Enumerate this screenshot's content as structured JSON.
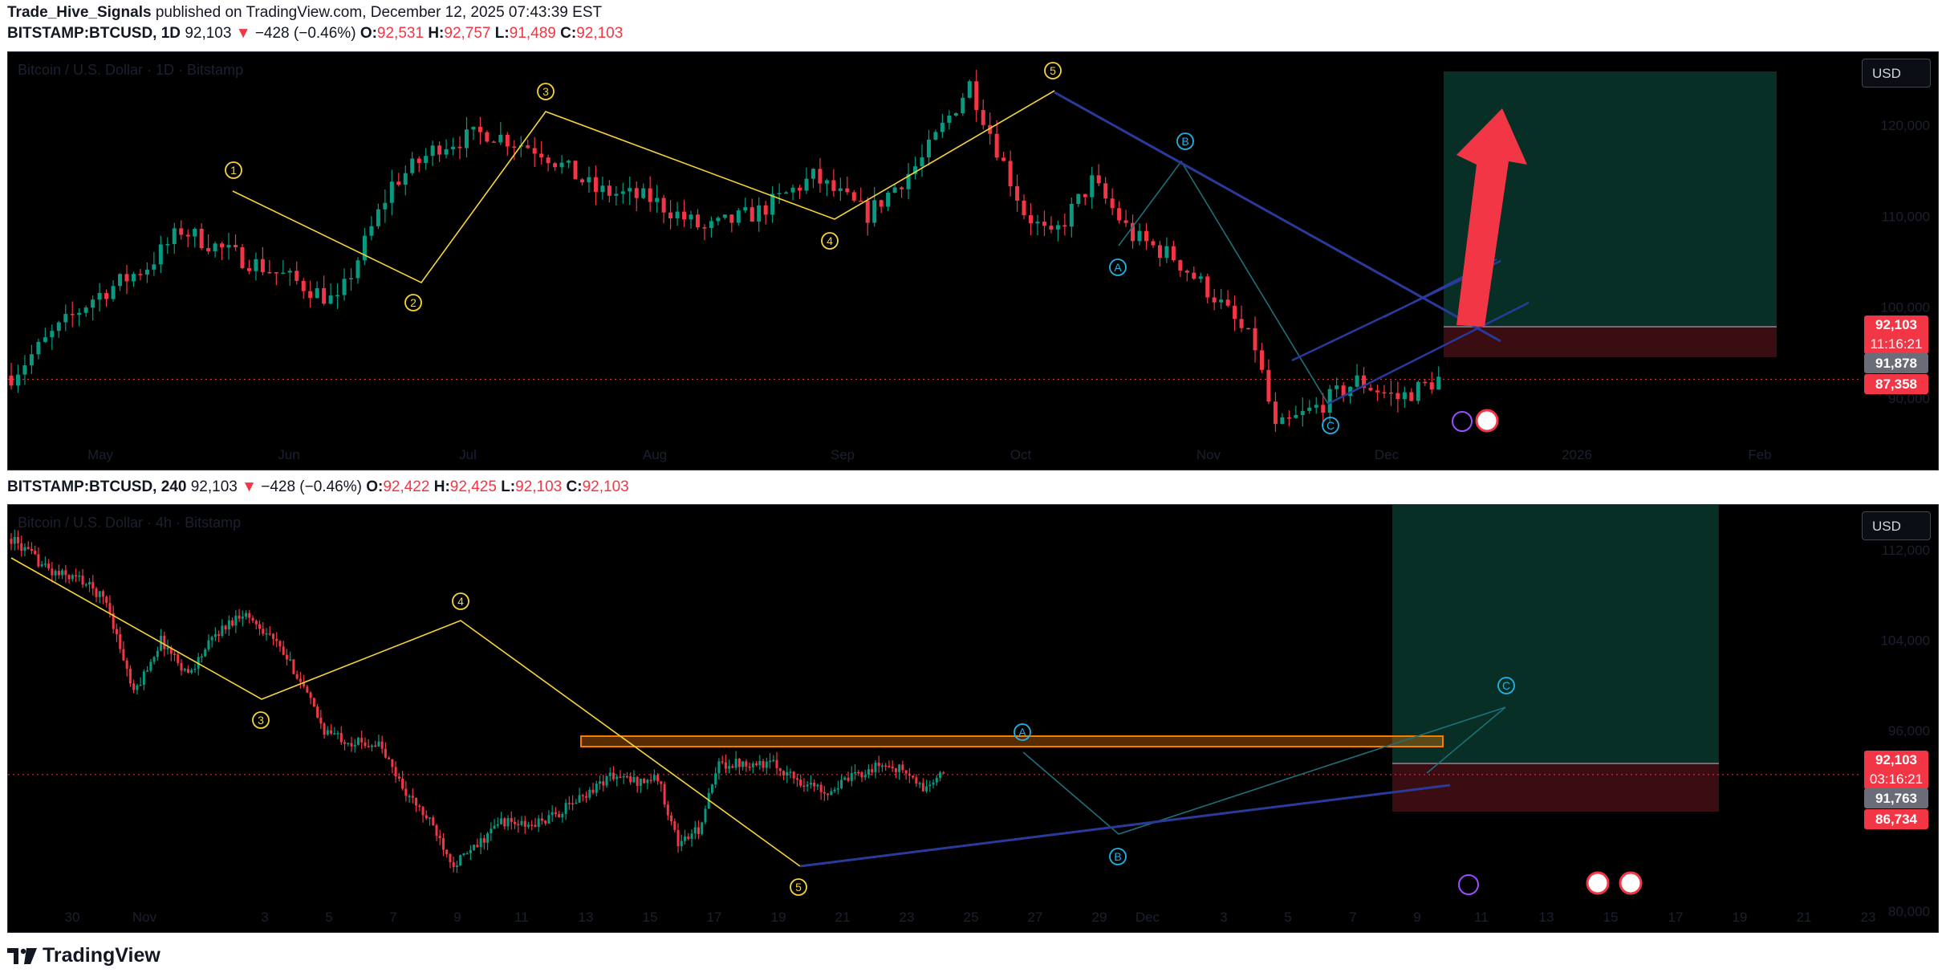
{
  "publish_line": {
    "author": "Trade_Hive_Signals",
    "text": "published on TradingView.com, December 12, 2025 07:43:39 EST"
  },
  "top_pane": {
    "symbol": "BITSTAMP:BTCUSD, 1D",
    "last": "92,103",
    "change": "−428 (−0.46%)",
    "o_label": "O:",
    "o": "92,531",
    "h_label": "H:",
    "h": "92,757",
    "l_label": "L:",
    "l": "91,489",
    "c_label": "C:",
    "c": "92,103",
    "title": "Bitcoin / U.S. Dollar · 1D · Bitstamp",
    "currency": "USD",
    "price_tag": "92,103",
    "countdown": "11:16:21",
    "tag_grey": "91,878",
    "tag_red": "87,358"
  },
  "bottom_pane": {
    "symbol": "BITSTAMP:BTCUSD, 240",
    "last": "92,103",
    "change": "−428 (−0.46%)",
    "o_label": "O:",
    "o": "92,422",
    "h_label": "H:",
    "h": "92,425",
    "l_label": "L:",
    "l": "92,103",
    "c_label": "C:",
    "c": "92,103",
    "title": "Bitcoin / U.S. Dollar · 4h · Bitstamp",
    "currency": "USD",
    "price_tag": "92,103",
    "countdown": "03:16:21",
    "tag_grey": "91,763",
    "tag_red": "86,734"
  },
  "brand": "TradingView",
  "colors": {
    "background": "#000000",
    "up_candle": "#089981",
    "down_candle": "#f23645",
    "wave_line": "#f5d538",
    "correction_label": "#22b3e6",
    "trendline": "#2a3a9a",
    "target_zone": "#082f26",
    "stop_zone": "#3a0d12",
    "resistance_box": "#f57c00",
    "arrow": "#f23645"
  },
  "chart_data": [
    {
      "type": "candlestick",
      "timeframe": "1D",
      "x_tick_labels": [
        "May",
        "Jun",
        "Jul",
        "Aug",
        "Sep",
        "Oct",
        "Nov",
        "Dec",
        "2026",
        "Feb"
      ],
      "y_tick_labels": [
        "120,000",
        "110,000",
        "100,000",
        "90,000"
      ],
      "ylim": [
        82000,
        128000
      ],
      "close_path": [
        [
          0,
          92500
        ],
        [
          6,
          97000
        ],
        [
          12,
          101000
        ],
        [
          20,
          104500
        ],
        [
          25,
          108500
        ],
        [
          32,
          106000
        ],
        [
          40,
          103500
        ],
        [
          48,
          100500
        ],
        [
          56,
          113500
        ],
        [
          63,
          117800
        ],
        [
          70,
          119200
        ],
        [
          78,
          117200
        ],
        [
          86,
          112800
        ],
        [
          94,
          111900
        ],
        [
          102,
          108500
        ],
        [
          110,
          110500
        ],
        [
          118,
          114300
        ],
        [
          126,
          110200
        ],
        [
          134,
          116200
        ],
        [
          141,
          124500
        ],
        [
          149,
          110500
        ],
        [
          153,
          107500
        ],
        [
          159,
          113800
        ],
        [
          165,
          107800
        ],
        [
          171,
          105500
        ],
        [
          177,
          101200
        ],
        [
          183,
          95700
        ],
        [
          186,
          86500
        ],
        [
          192,
          89000
        ],
        [
          198,
          91900
        ],
        [
          204,
          90000
        ],
        [
          210,
          92103
        ]
      ],
      "wave_labels": [
        "1",
        "2",
        "3",
        "4",
        "5",
        "A",
        "B",
        "C"
      ],
      "annotations": [
        "impulse wave 1-5",
        "ABC correction",
        "rising channel",
        "descending trendline",
        "long position target/stop zone",
        "upward arrow"
      ]
    },
    {
      "type": "candlestick",
      "timeframe": "240",
      "x_tick_labels": [
        "30",
        "Nov",
        "3",
        "5",
        "7",
        "9",
        "11",
        "13",
        "15",
        "17",
        "19",
        "21",
        "23",
        "25",
        "27",
        "29",
        "Dec",
        "3",
        "5",
        "7",
        "9",
        "11",
        "13",
        "15",
        "17",
        "19",
        "21",
        "23"
      ],
      "y_tick_labels": [
        "112,000",
        "104,000",
        "96,000",
        "88,000",
        "80,000"
      ],
      "ylim": [
        78000,
        116000
      ],
      "close_path": [
        [
          0,
          113000
        ],
        [
          12,
          110000
        ],
        [
          20,
          109500
        ],
        [
          28,
          107500
        ],
        [
          36,
          99200
        ],
        [
          44,
          104000
        ],
        [
          52,
          101000
        ],
        [
          60,
          104500
        ],
        [
          68,
          106500
        ],
        [
          76,
          104500
        ],
        [
          84,
          101000
        ],
        [
          92,
          96000
        ],
        [
          100,
          95000
        ],
        [
          108,
          94800
        ],
        [
          116,
          90500
        ],
        [
          124,
          87500
        ],
        [
          130,
          84200
        ],
        [
          136,
          85500
        ],
        [
          144,
          88000
        ],
        [
          152,
          87500
        ],
        [
          160,
          88500
        ],
        [
          168,
          90200
        ],
        [
          176,
          92000
        ],
        [
          184,
          91500
        ],
        [
          190,
          91800
        ],
        [
          196,
          86000
        ],
        [
          202,
          87200
        ],
        [
          208,
          93000
        ],
        [
          216,
          93200
        ],
        [
          224,
          93000
        ],
        [
          232,
          91500
        ],
        [
          240,
          90600
        ],
        [
          248,
          92000
        ],
        [
          256,
          93000
        ],
        [
          262,
          92500
        ],
        [
          268,
          90800
        ],
        [
          274,
          92103
        ]
      ],
      "wave_labels": [
        "3",
        "4",
        "5",
        "A",
        "B",
        "C"
      ],
      "annotations": [
        "wave 3-5 decline",
        "resistance box near 95,000",
        "rising support line",
        "long position target/stop zone"
      ]
    }
  ]
}
